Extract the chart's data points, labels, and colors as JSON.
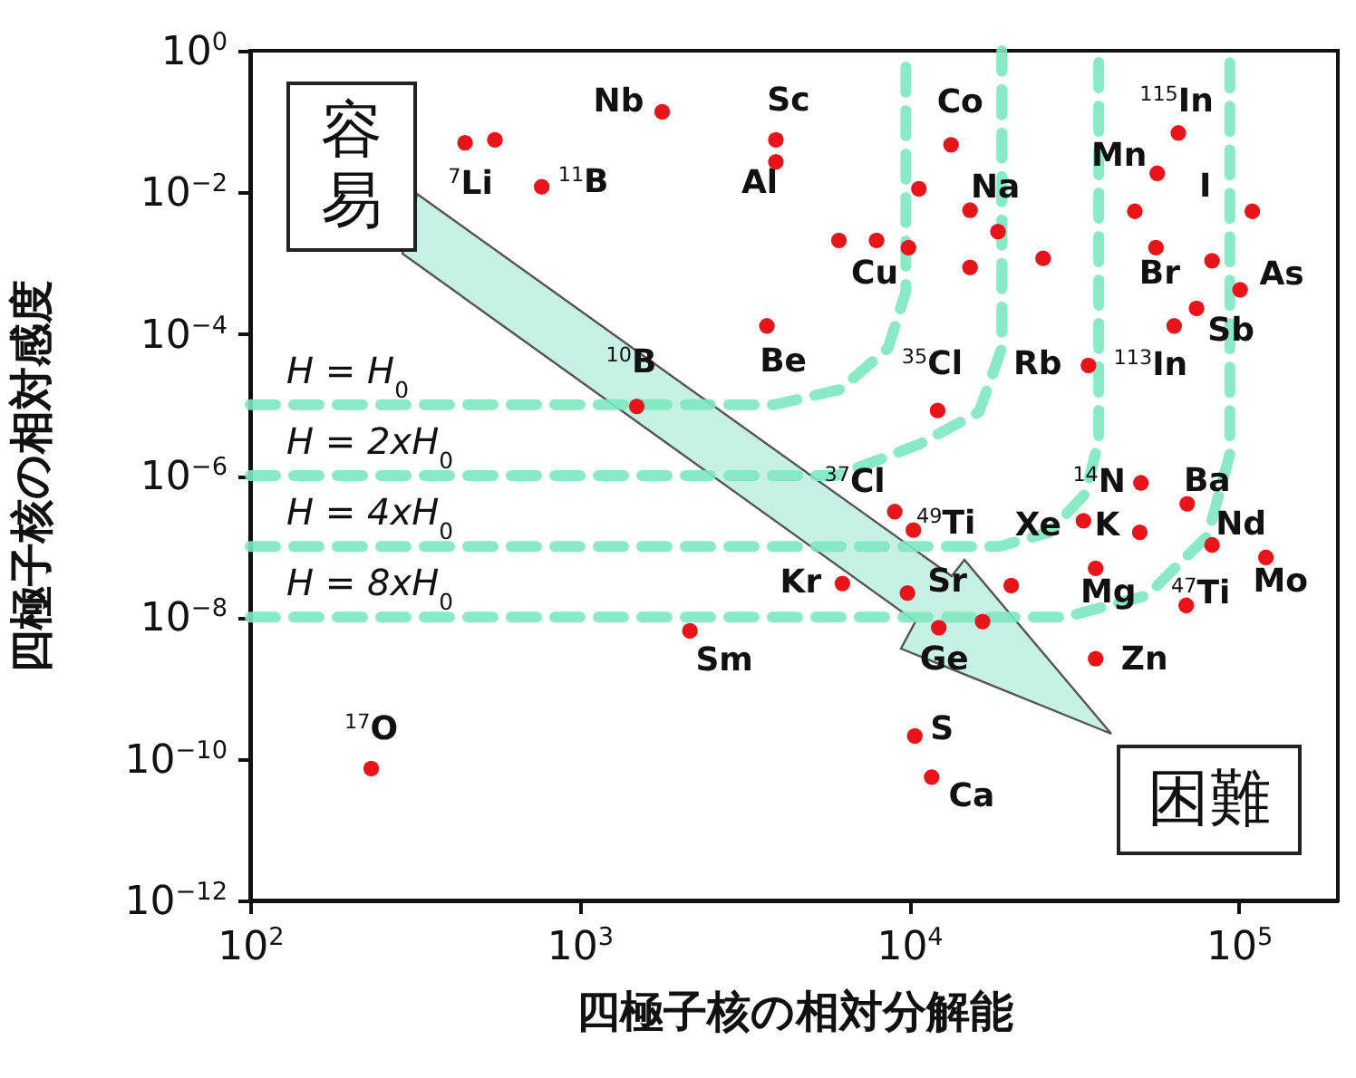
{
  "chart_data": {
    "type": "scatter",
    "xlabel": "四極子核の相対分解能",
    "ylabel": "四極子核の相対感度",
    "log": "xy",
    "grid": false,
    "legend": false,
    "xlim": [
      100,
      200000
    ],
    "xticks": [
      {
        "value": 100,
        "label": "10$^{2}$"
      },
      {
        "value": 1000,
        "label": "10$^{3}$"
      },
      {
        "value": 10000,
        "label": "10$^{4}$"
      },
      {
        "value": 100000,
        "label": "10$^{5}$"
      }
    ],
    "ylim": [
      1e-12,
      1
    ],
    "yticks": [
      {
        "value": 1e-12,
        "label": "10$^{−12}$"
      },
      {
        "value": 1e-10,
        "label": "10$^{−10}$"
      },
      {
        "value": 1e-08,
        "label": "10$^{−8}$"
      },
      {
        "value": 1e-06,
        "label": "10$^{−6}$"
      },
      {
        "value": 0.0001,
        "label": "10$^{−4}$"
      },
      {
        "value": 0.01,
        "label": "10$^{−2}$"
      },
      {
        "value": 1,
        "label": "10$^{0}$"
      }
    ],
    "series": [
      {
        "marker": "circle",
        "color": "#e8141a",
        "x": [
          449,
          553,
          767,
          1780,
          1490,
          3700,
          3940,
          3940,
          13400,
          10700,
          15300,
          18600,
          6120,
          7960,
          9950,
          15300,
          25500,
          12200,
          35000,
          65600,
          56600,
          48400,
          56100,
          83000,
          110000,
          101000,
          74500,
          63700,
          50500,
          69800,
          33800,
          50100,
          83000,
          121000,
          36800,
          69300,
          9040,
          10300,
          6270,
          9880,
          20400,
          12300,
          16700,
          36800,
          10400,
          11700,
          2160,
          233
        ],
        "values": [
          0.05,
          0.055,
          0.012,
          0.137,
          9.5e-06,
          0.00013,
          0.055,
          0.027,
          0.047,
          0.0112,
          0.0056,
          0.0028,
          0.0021,
          0.0021,
          0.00166,
          0.00087,
          0.00117,
          8.3e-06,
          3.6e-05,
          0.069,
          0.0186,
          0.0054,
          0.00166,
          0.00108,
          0.0054,
          0.00042,
          0.00023,
          0.00013,
          7.9e-07,
          4e-07,
          2.3e-07,
          1.58e-07,
          1.05e-07,
          7e-08,
          4.9e-08,
          1.47e-08,
          3.1e-07,
          1.7e-07,
          3e-08,
          2.2e-08,
          2.8e-08,
          7.1e-09,
          8.7e-09,
          2.6e-09,
          2.1e-10,
          5.5e-11,
          6.4e-09,
          7.3e-11
        ]
      },
      {
        "type": "line",
        "name": "H = H$_{0}$",
        "color": "#7ee8c0",
        "line_style": "dashed",
        "marker": "none",
        "x": [
          100,
          3890,
          6170,
          8630,
          9770,
          9770
        ],
        "values": [
          1e-05,
          1e-05,
          1.64e-05,
          6.3e-05,
          0.000398,
          1
        ]
      },
      {
        "type": "line",
        "name": "H = 2xH$_{0}$",
        "color": "#7ee8c0",
        "line_style": "dashed",
        "marker": "none",
        "x": [
          100,
          6030,
          10700,
          16300,
          19100,
          19100
        ],
        "values": [
          1e-06,
          1e-06,
          2.75e-06,
          7.9e-06,
          6.3e-05,
          1
        ]
      },
      {
        "type": "line",
        "name": "H = 4xH$_{0}$",
        "color": "#7ee8c0",
        "line_style": "dashed",
        "marker": "none",
        "x": [
          100,
          18800,
          26600,
          34300,
          37600,
          37600
        ],
        "values": [
          1e-07,
          1e-07,
          1.58e-07,
          5.6e-07,
          3.16e-06,
          1
        ]
      },
      {
        "type": "line",
        "name": "H = 8xH$_{0}$",
        "color": "#7ee8c0",
        "line_style": "dashed",
        "marker": "none",
        "x": [
          100,
          29700,
          52800,
          80500,
          94000,
          94000
        ],
        "values": [
          1e-08,
          1e-08,
          2.04e-08,
          1.41e-07,
          2e-06,
          1
        ]
      }
    ],
    "annotations": [
      {
        "text": "Nb",
        "x": 1780,
        "y": 0.137
      },
      {
        "text": "$^{7}$Li",
        "x": 449,
        "y": 0.05
      },
      {
        "text": "$^{11}$B",
        "x": 767,
        "y": 0.012
      },
      {
        "text": "Sc",
        "x": 3940,
        "y": 0.055
      },
      {
        "text": "Al",
        "x": 3940,
        "y": 0.027
      },
      {
        "text": "$^{10}$B",
        "x": 1490,
        "y": 9.5e-06
      },
      {
        "text": "Be",
        "x": 3700,
        "y": 0.00013
      },
      {
        "text": "Co",
        "x": 13400,
        "y": 0.047
      },
      {
        "text": "Na",
        "x": 15300,
        "y": 0.0056
      },
      {
        "text": "Cu",
        "x": 7960,
        "y": 0.0021
      },
      {
        "text": "Mn",
        "x": 56600,
        "y": 0.0186
      },
      {
        "text": "$^{115}$In",
        "x": 65600,
        "y": 0.069
      },
      {
        "text": "I",
        "x": 110000,
        "y": 0.0054
      },
      {
        "text": "Br",
        "x": 56100,
        "y": 0.00166
      },
      {
        "text": "As",
        "x": 101000,
        "y": 0.00042
      },
      {
        "text": "Sb",
        "x": 74500,
        "y": 0.00023
      },
      {
        "text": "$^{113}$In",
        "x": 63700,
        "y": 0.00013
      },
      {
        "text": "Rb",
        "x": 35000,
        "y": 3.6e-05
      },
      {
        "text": "$^{35}$Cl",
        "x": 12200,
        "y": 8.3e-06
      },
      {
        "text": "$^{37}$Cl",
        "x": 9040,
        "y": 3.1e-07
      },
      {
        "text": "$^{49}$Ti",
        "x": 10300,
        "y": 1.7e-07
      },
      {
        "text": "Xe",
        "x": 33800,
        "y": 2.3e-07
      },
      {
        "text": "$^{14}$N",
        "x": 50500,
        "y": 7.9e-07
      },
      {
        "text": "K",
        "x": 33800,
        "y": 2.3e-07
      },
      {
        "text": "Ba",
        "x": 69800,
        "y": 4e-07
      },
      {
        "text": "Nd",
        "x": 83000,
        "y": 1.05e-07
      },
      {
        "text": "Mo",
        "x": 121000,
        "y": 7e-08
      },
      {
        "text": "Kr",
        "x": 6270,
        "y": 3e-08
      },
      {
        "text": "Sr",
        "x": 9880,
        "y": 2.2e-08
      },
      {
        "text": "Mg",
        "x": 36800,
        "y": 4.9e-08
      },
      {
        "text": "$^{47}$Ti",
        "x": 69300,
        "y": 1.47e-08
      },
      {
        "text": "Ge",
        "x": 12300,
        "y": 7.1e-09
      },
      {
        "text": "Zn",
        "x": 36800,
        "y": 2.6e-09
      },
      {
        "text": "S",
        "x": 10400,
        "y": 2.1e-10
      },
      {
        "text": "Ca",
        "x": 11700,
        "y": 5.5e-11
      },
      {
        "text": "Sm",
        "x": 2160,
        "y": 6.4e-09
      },
      {
        "text": "$^{17}$O",
        "x": 233,
        "y": 7.3e-11
      },
      "容易",
      "困難"
    ]
  }
}
